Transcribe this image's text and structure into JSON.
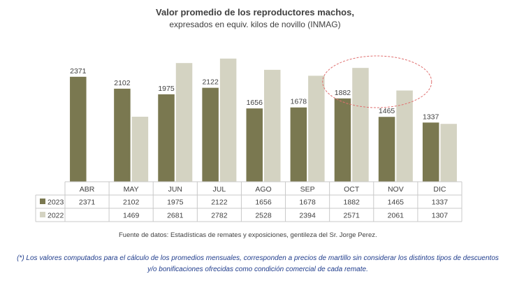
{
  "chart_data": {
    "type": "bar",
    "title": "Valor promedio de los reproductores machos,",
    "subtitle": "expresados en equiv. kilos de novillo (INMAG)",
    "categories": [
      "ABR",
      "MAY",
      "JUN",
      "JUL",
      "AGO",
      "SEP",
      "OCT",
      "NOV",
      "DIC"
    ],
    "series": [
      {
        "name": "2023",
        "color": "#7a7850",
        "values": [
          2371,
          2102,
          1975,
          2122,
          1656,
          1678,
          1882,
          1465,
          1337
        ]
      },
      {
        "name": "2022",
        "color": "#d4d3c2",
        "values": [
          null,
          1469,
          2681,
          2782,
          2528,
          2394,
          2571,
          2061,
          1307
        ]
      }
    ],
    "data_labels_series": "2023",
    "ylim": [
      0,
      3000
    ],
    "grid": false,
    "data_table": true,
    "annotation": "red dashed ellipse highlighting OCT and NOV 2022 bars"
  },
  "footer": {
    "source": "Fuente de datos: Estadísticas de remates y exposiciones, gentileza del Sr. Jorge Perez.",
    "note": "(*) Los valores computados para el cálculo de los promedios mensuales, corresponden a precios de martillo sin considerar los distintos tipos de descuentos y/o bonificaciones ofrecidas como condición comercial de cada remate."
  }
}
